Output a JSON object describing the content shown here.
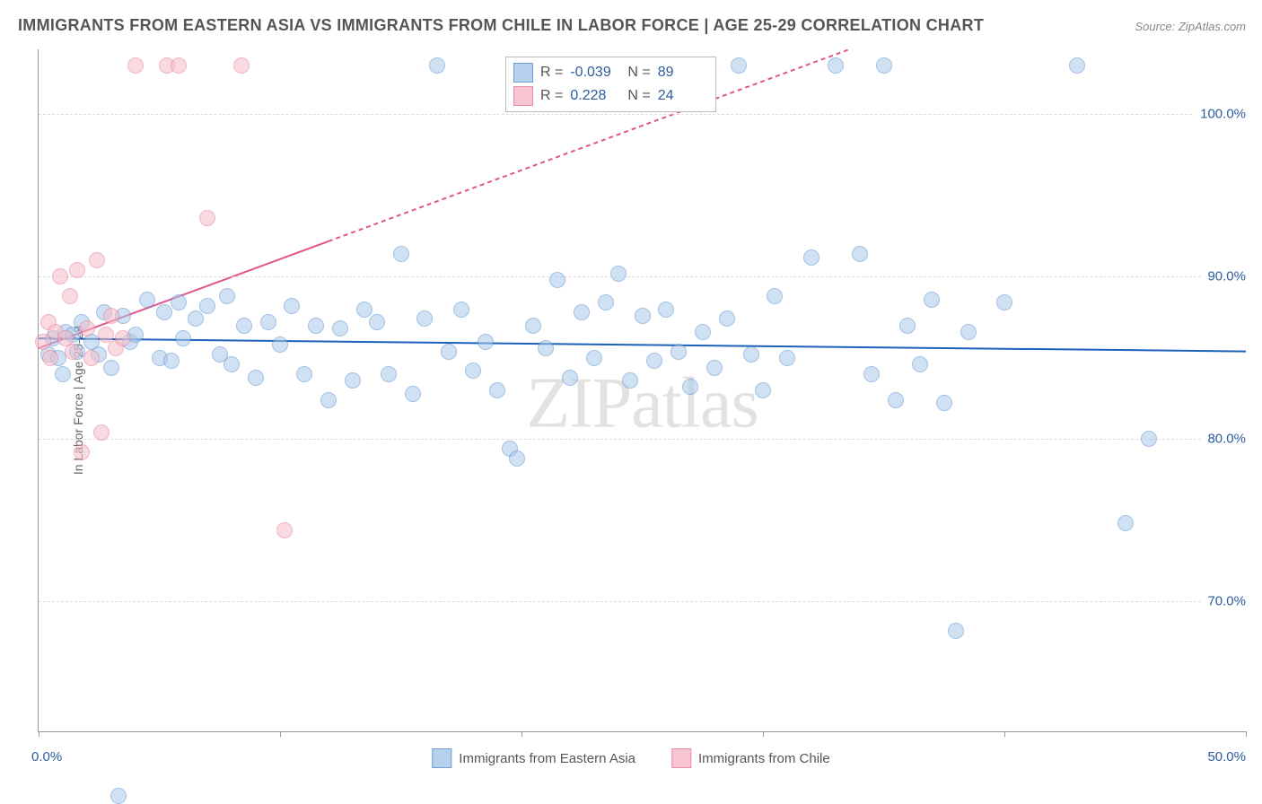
{
  "title": "IMMIGRANTS FROM EASTERN ASIA VS IMMIGRANTS FROM CHILE IN LABOR FORCE | AGE 25-29 CORRELATION CHART",
  "source": "Source: ZipAtlas.com",
  "watermark": "ZIPatlas",
  "ylabel": "In Labor Force | Age 25-29",
  "chart": {
    "type": "scatter",
    "background_color": "#ffffff",
    "grid_color": "#dddddd",
    "axis_color": "#999999",
    "text_color": "#555555",
    "value_color": "#2c5c9e",
    "xlim": [
      0,
      50
    ],
    "ylim": [
      62,
      104
    ],
    "xtick_positions": [
      0,
      10,
      20,
      30,
      40,
      50
    ],
    "xtick_labels": {
      "min": "0.0%",
      "max": "50.0%"
    },
    "yticks": [
      70,
      80,
      90,
      100
    ],
    "ytick_labels": [
      "70.0%",
      "80.0%",
      "90.0%",
      "100.0%"
    ],
    "marker_radius": 9,
    "marker_border_width": 1.2,
    "series": [
      {
        "name": "Immigrants from Eastern Asia",
        "fill_color": "#a9c9eb",
        "fill_opacity": 0.55,
        "border_color": "#5b8fc9",
        "r_value": "-0.039",
        "n_value": "89",
        "trend": {
          "y_start": 86.2,
          "y_end": 85.4,
          "color": "#1b61b8",
          "width": 2,
          "dash": "none"
        },
        "points": [
          [
            0.4,
            85.2
          ],
          [
            0.6,
            86.2
          ],
          [
            0.8,
            85.0
          ],
          [
            1.0,
            84.0
          ],
          [
            1.1,
            86.6
          ],
          [
            1.4,
            86.4
          ],
          [
            1.6,
            85.4
          ],
          [
            1.8,
            87.2
          ],
          [
            2.2,
            86.0
          ],
          [
            2.5,
            85.2
          ],
          [
            2.7,
            87.8
          ],
          [
            3.0,
            84.4
          ],
          [
            3.3,
            58.0
          ],
          [
            3.5,
            87.6
          ],
          [
            3.8,
            86.0
          ],
          [
            4.0,
            86.4
          ],
          [
            4.5,
            88.6
          ],
          [
            5.0,
            85.0
          ],
          [
            5.2,
            87.8
          ],
          [
            5.5,
            84.8
          ],
          [
            5.8,
            88.4
          ],
          [
            6.0,
            86.2
          ],
          [
            6.5,
            87.4
          ],
          [
            7.0,
            88.2
          ],
          [
            7.5,
            85.2
          ],
          [
            7.8,
            88.8
          ],
          [
            8.0,
            84.6
          ],
          [
            8.5,
            87.0
          ],
          [
            9.0,
            83.8
          ],
          [
            9.5,
            87.2
          ],
          [
            10.0,
            85.8
          ],
          [
            10.5,
            88.2
          ],
          [
            11.0,
            84.0
          ],
          [
            11.5,
            87.0
          ],
          [
            12.0,
            82.4
          ],
          [
            12.5,
            86.8
          ],
          [
            13.0,
            83.6
          ],
          [
            13.5,
            88.0
          ],
          [
            14.0,
            87.2
          ],
          [
            14.5,
            84.0
          ],
          [
            15.0,
            91.4
          ],
          [
            15.5,
            82.8
          ],
          [
            16.0,
            87.4
          ],
          [
            16.5,
            103.0
          ],
          [
            17.0,
            85.4
          ],
          [
            17.5,
            88.0
          ],
          [
            18.0,
            84.2
          ],
          [
            18.5,
            86.0
          ],
          [
            19.0,
            83.0
          ],
          [
            19.5,
            79.4
          ],
          [
            19.8,
            78.8
          ],
          [
            20.5,
            87.0
          ],
          [
            21.0,
            85.6
          ],
          [
            21.5,
            89.8
          ],
          [
            22.0,
            83.8
          ],
          [
            22.5,
            87.8
          ],
          [
            23.0,
            85.0
          ],
          [
            23.5,
            88.4
          ],
          [
            24.0,
            90.2
          ],
          [
            24.5,
            83.6
          ],
          [
            25.0,
            87.6
          ],
          [
            25.5,
            84.8
          ],
          [
            26.0,
            88.0
          ],
          [
            26.5,
            85.4
          ],
          [
            27.0,
            83.2
          ],
          [
            27.5,
            86.6
          ],
          [
            28.0,
            84.4
          ],
          [
            28.5,
            87.4
          ],
          [
            29.0,
            103.0
          ],
          [
            29.5,
            85.2
          ],
          [
            30.0,
            83.0
          ],
          [
            30.5,
            88.8
          ],
          [
            31.0,
            85.0
          ],
          [
            32.0,
            91.2
          ],
          [
            33.0,
            103.0
          ],
          [
            34.0,
            91.4
          ],
          [
            34.5,
            84.0
          ],
          [
            35.0,
            103.0
          ],
          [
            35.5,
            82.4
          ],
          [
            36.0,
            87.0
          ],
          [
            36.5,
            84.6
          ],
          [
            37.0,
            88.6
          ],
          [
            37.5,
            82.2
          ],
          [
            38.0,
            68.2
          ],
          [
            38.5,
            86.6
          ],
          [
            40.0,
            88.4
          ],
          [
            43.0,
            103.0
          ],
          [
            45.0,
            74.8
          ],
          [
            46.0,
            80.0
          ]
        ]
      },
      {
        "name": "Immigrants from Chile",
        "fill_color": "#f5bcc8",
        "fill_opacity": 0.55,
        "border_color": "#e37a9a",
        "r_value": "0.228",
        "n_value": "24",
        "trend": {
          "y_start": 85.6,
          "y_end": 113.0,
          "color": "#e0558c",
          "width": 2,
          "dash_after_x": 12
        },
        "points": [
          [
            0.2,
            86.0
          ],
          [
            0.4,
            87.2
          ],
          [
            0.5,
            85.0
          ],
          [
            0.7,
            86.6
          ],
          [
            0.9,
            90.0
          ],
          [
            1.1,
            86.2
          ],
          [
            1.3,
            88.8
          ],
          [
            1.4,
            85.4
          ],
          [
            1.6,
            90.4
          ],
          [
            1.8,
            79.2
          ],
          [
            2.0,
            86.8
          ],
          [
            2.2,
            85.0
          ],
          [
            2.4,
            91.0
          ],
          [
            2.6,
            80.4
          ],
          [
            2.8,
            86.4
          ],
          [
            3.0,
            87.6
          ],
          [
            3.2,
            85.6
          ],
          [
            3.5,
            86.2
          ],
          [
            4.0,
            103.0
          ],
          [
            5.3,
            103.0
          ],
          [
            5.8,
            103.0
          ],
          [
            7.0,
            93.6
          ],
          [
            8.4,
            103.0
          ],
          [
            10.2,
            74.4
          ]
        ]
      }
    ]
  },
  "legend": {
    "series1_label": "Immigrants from Eastern Asia",
    "series2_label": "Immigrants from Chile",
    "r_label": "R =",
    "n_label": "N ="
  }
}
